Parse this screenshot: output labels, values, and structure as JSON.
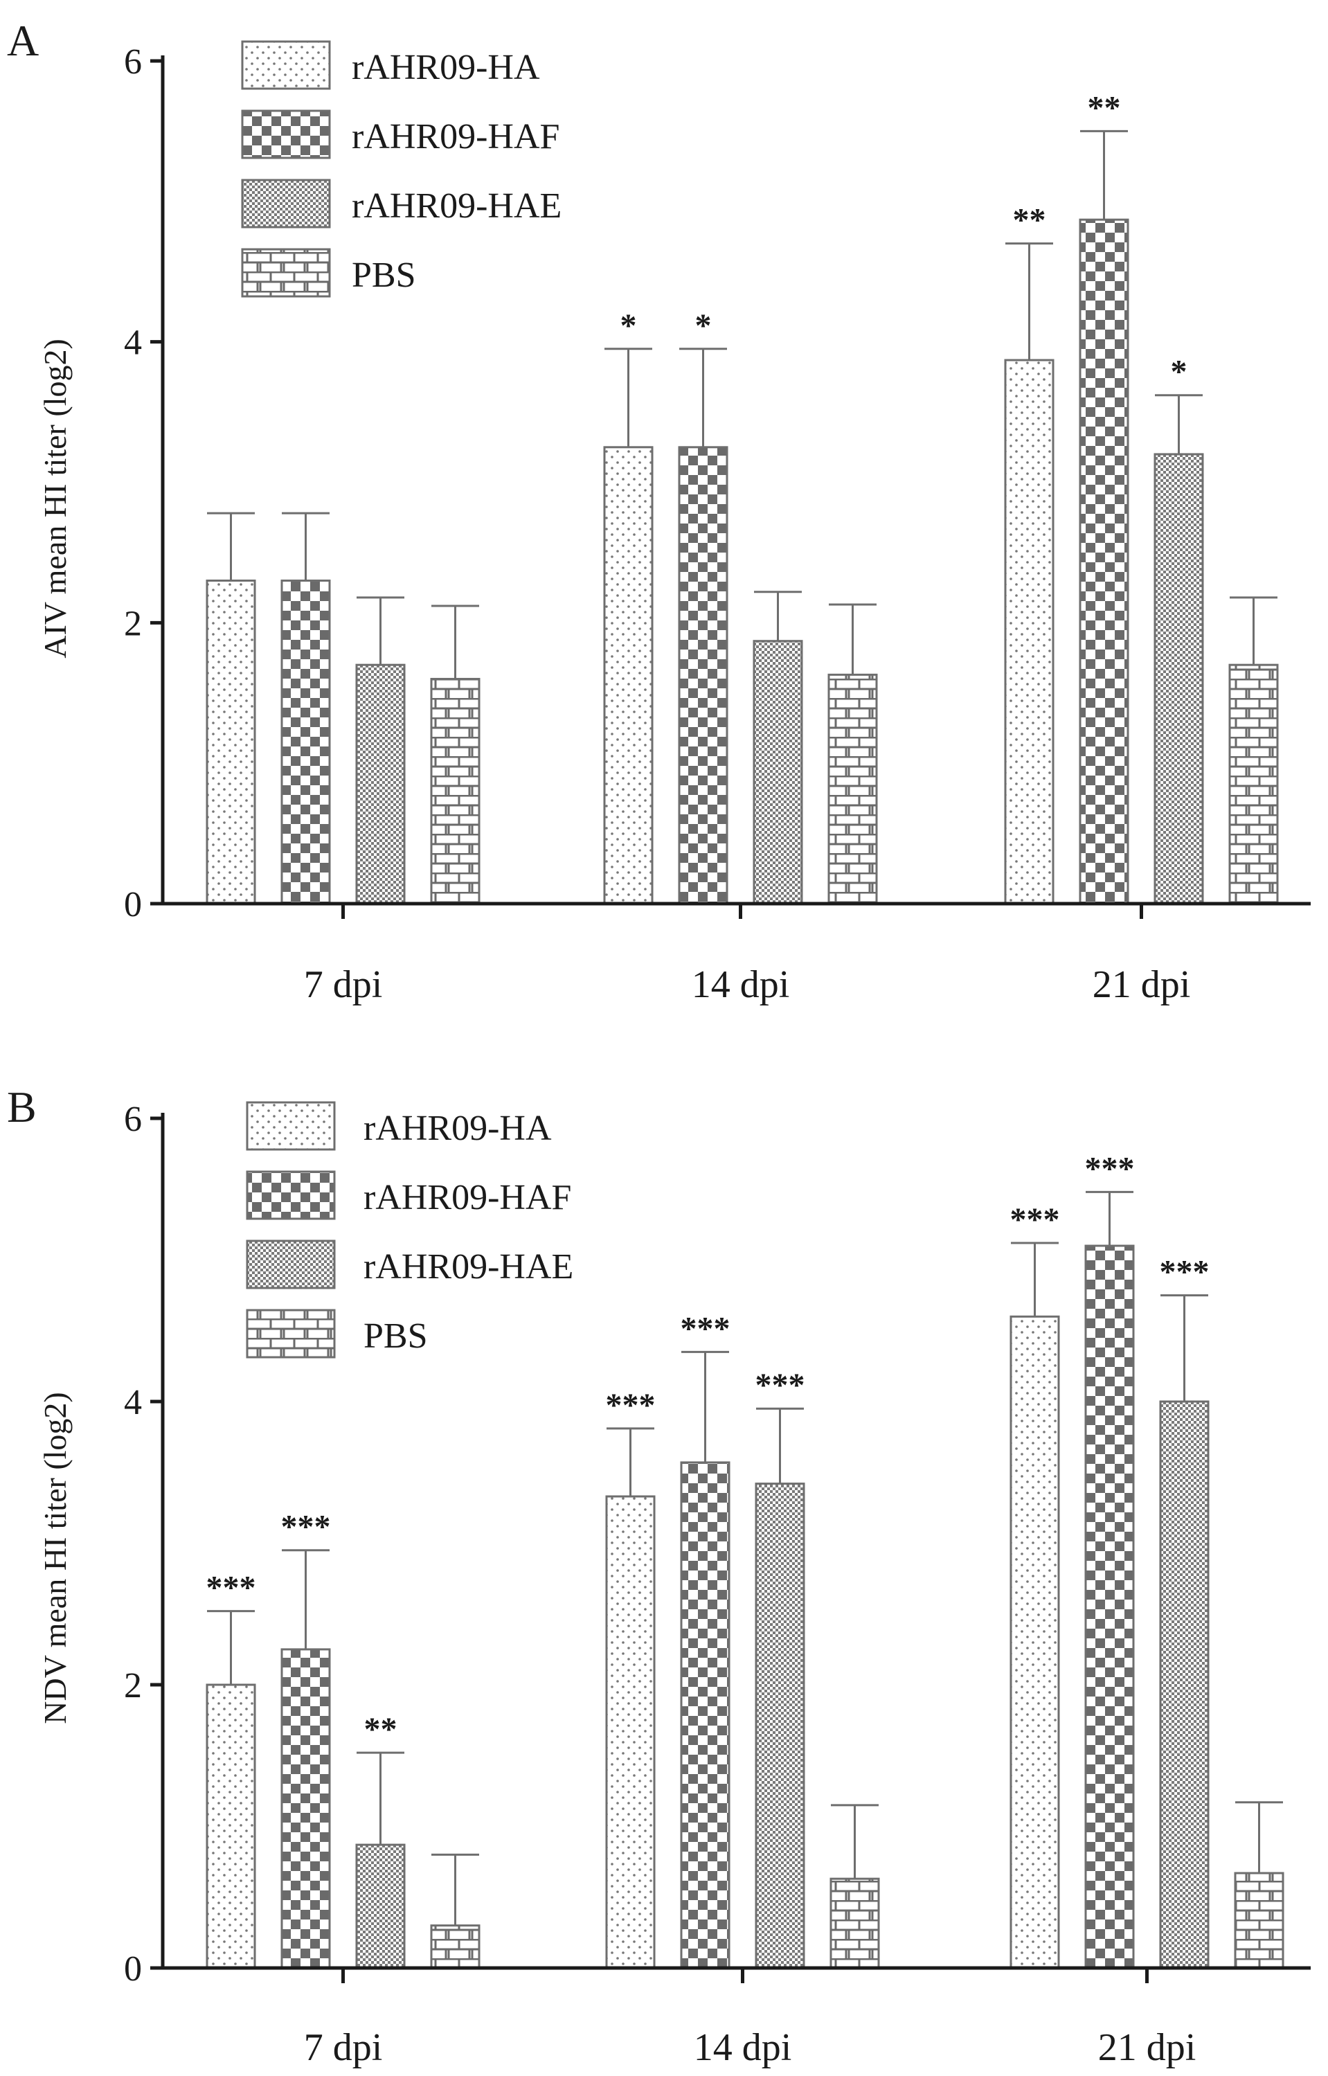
{
  "chart_data": [
    {
      "type": "bar",
      "panel": "A",
      "ylabel": "AIV mean HI titer (log2)",
      "ylim": [
        0,
        6
      ],
      "yticks": [
        0,
        2,
        4,
        6
      ],
      "categories": [
        "7 dpi",
        "14 dpi",
        "21 dpi"
      ],
      "legend": [
        "rAHR09-HA",
        "rAHR09-HAF",
        "rAHR09-HAE",
        "PBS"
      ],
      "series": [
        {
          "name": "rAHR09-HA",
          "pattern": "dots",
          "values": [
            2.3,
            3.25,
            3.87
          ],
          "errors": [
            0.48,
            0.7,
            0.83
          ],
          "significance": [
            "",
            "*",
            "**"
          ]
        },
        {
          "name": "rAHR09-HAF",
          "pattern": "checker",
          "values": [
            2.3,
            3.25,
            4.87
          ],
          "errors": [
            0.48,
            0.7,
            0.63
          ],
          "significance": [
            "",
            "*",
            "**"
          ]
        },
        {
          "name": "rAHR09-HAE",
          "pattern": "fine",
          "values": [
            1.7,
            1.87,
            3.2
          ],
          "errors": [
            0.48,
            0.35,
            0.42
          ],
          "significance": [
            "",
            "",
            "*"
          ]
        },
        {
          "name": "PBS",
          "pattern": "brick",
          "values": [
            1.6,
            1.63,
            1.7
          ],
          "errors": [
            0.52,
            0.5,
            0.48
          ],
          "significance": [
            "",
            "",
            ""
          ]
        }
      ]
    },
    {
      "type": "bar",
      "panel": "B",
      "ylabel": "NDV mean HI titer (log2)",
      "ylim": [
        0,
        6
      ],
      "yticks": [
        0,
        2,
        4,
        6
      ],
      "categories": [
        "7 dpi",
        "14 dpi",
        "21 dpi"
      ],
      "legend": [
        "rAHR09-HA",
        "rAHR09-HAF",
        "rAHR09-HAE",
        "PBS"
      ],
      "series": [
        {
          "name": "rAHR09-HA",
          "pattern": "dots",
          "values": [
            2.0,
            3.33,
            4.6
          ],
          "errors": [
            0.52,
            0.48,
            0.52
          ],
          "significance": [
            "***",
            "***",
            "***"
          ]
        },
        {
          "name": "rAHR09-HAF",
          "pattern": "checker",
          "values": [
            2.25,
            3.57,
            5.1
          ],
          "errors": [
            0.7,
            0.78,
            0.38
          ],
          "significance": [
            "***",
            "***",
            "***"
          ]
        },
        {
          "name": "rAHR09-HAE",
          "pattern": "fine",
          "values": [
            0.87,
            3.42,
            4.0
          ],
          "errors": [
            0.65,
            0.53,
            0.75
          ],
          "significance": [
            "**",
            "***",
            "***"
          ]
        },
        {
          "name": "PBS",
          "pattern": "brick",
          "values": [
            0.3,
            0.63,
            0.67
          ],
          "errors": [
            0.5,
            0.52,
            0.5
          ],
          "significance": [
            "",
            "",
            ""
          ]
        }
      ]
    }
  ]
}
